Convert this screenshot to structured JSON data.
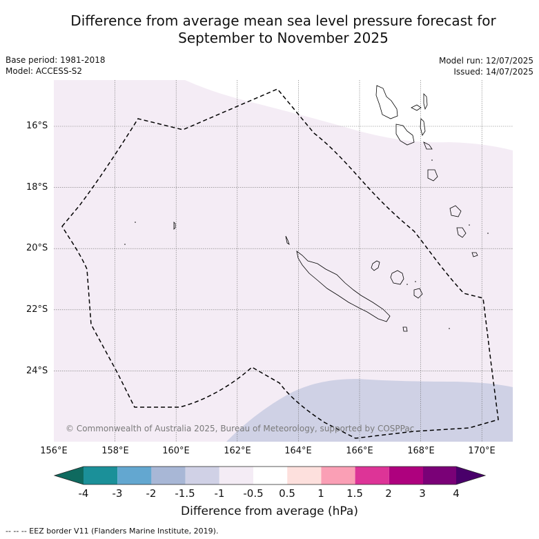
{
  "header": {
    "title_line1": "Difference from average mean sea level pressure forecast for",
    "title_line2": "September to November 2025",
    "base_period": "Base period: 1981-2018",
    "model": "Model: ACCESS-S2",
    "model_run": "Model run: 12/07/2025",
    "issued": "Issued: 14/07/2025"
  },
  "map": {
    "lat_labels": [
      "16°S",
      "18°S",
      "20°S",
      "22°S",
      "24°S"
    ],
    "lon_labels": [
      "156°E",
      "158°E",
      "160°E",
      "162°E",
      "164°E",
      "166°E",
      "168°E",
      "170°E"
    ],
    "copyright": "© Commonwealth of Australia 2025, Bureau of Meteorology, supported by COSPPac",
    "colors": {
      "anomaly_minus_1_to_minus_0_5": "#f4ecf5",
      "anomaly_minus_1_5_to_minus_1": "#cfd1e5",
      "coastline": "#000000",
      "eez_border": "#000000",
      "gridline": "#6b6b6b"
    }
  },
  "colorbar": {
    "tick_labels": [
      "-4",
      "-3",
      "-2",
      "-1.5",
      "-1",
      "-0.5",
      "0.5",
      "1",
      "1.5",
      "2",
      "3",
      "4"
    ],
    "colors": [
      "#0f6a5f",
      "#1b9099",
      "#63a7d0",
      "#a8b7d6",
      "#d0d1e6",
      "#f4ecf5",
      "#ffffff",
      "#fde0dd",
      "#fa9fb5",
      "#dd3497",
      "#ae017e",
      "#7a0177",
      "#49006a"
    ],
    "title": "Difference from average (hPa)"
  },
  "footer": {
    "legend": "-- -- -- EEZ border V11 (Flanders Marine Institute, 2019)."
  }
}
